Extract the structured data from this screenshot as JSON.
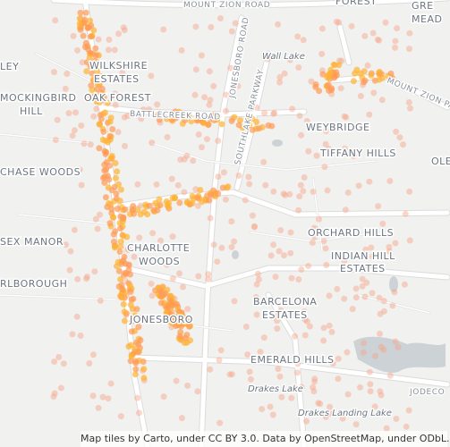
{
  "map": {
    "roads": [
      "MOUNT ZION ROAD",
      "JONESBORO ROAD",
      "SOUTHLAKE PARKWAY",
      "BATTLECREEK ROAD",
      "MOUNT ZION PA",
      "JODECO"
    ],
    "places": [
      "FOREST",
      "GRE",
      "MEAD",
      "LEY",
      "WILKSHIRE",
      "ESTATES",
      "MOCKINGBIRD",
      "HILL",
      "OAK FOREST",
      "WEYBRIDGE",
      "TIFFANY HILLS",
      "OLE",
      "CHASE WOODS",
      "SEX MANOR",
      "CHARLOTTE",
      "WOODS",
      "ORCHARD HILLS",
      "INDIAN HILL",
      "ESTATES",
      "RLBOROUGH",
      "BARCELONA",
      "ESTATES",
      "JONESBORO",
      "EMERALD HILLS"
    ],
    "water": [
      "Wall Lake",
      "Drakes Lake",
      "Drakes Landing Lake"
    ]
  },
  "attribution": "Map tiles by Carto, under CC BY 3.0. Data by OpenStreetMap, under ODbL."
}
